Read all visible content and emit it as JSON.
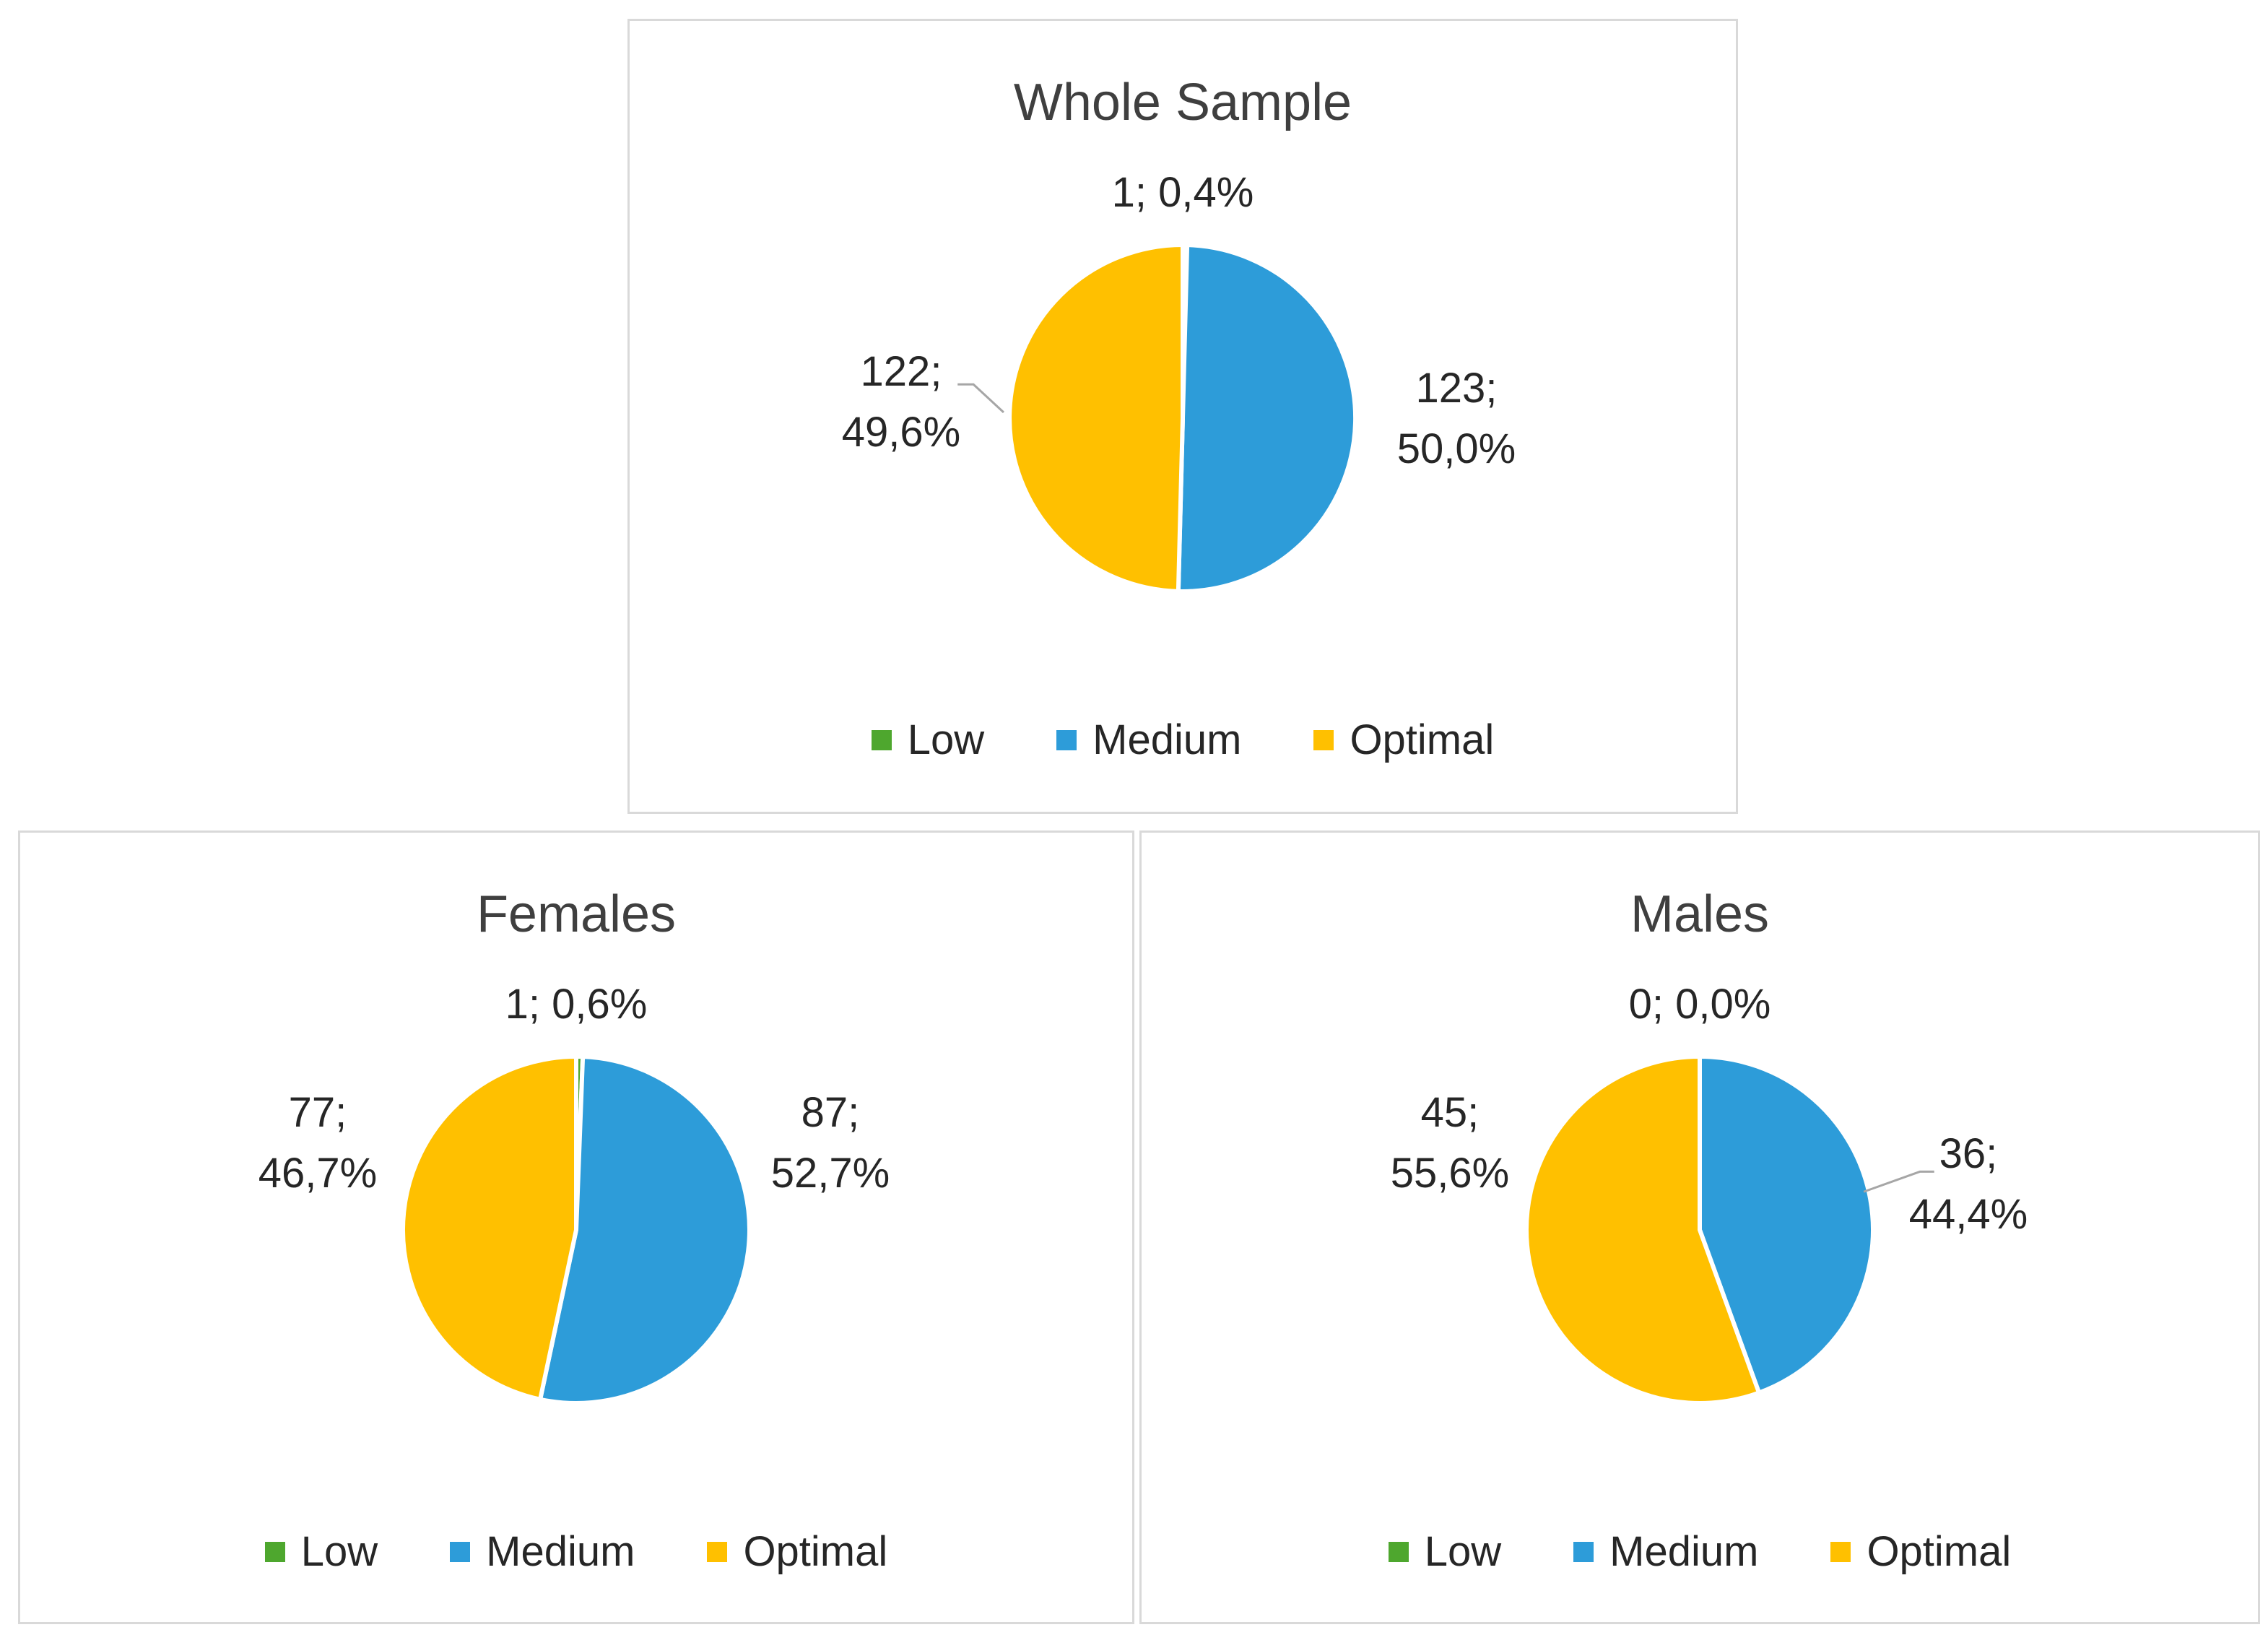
{
  "figure": {
    "background_color": "#ffffff",
    "panel_border_color": "#d9d9d9",
    "leader_line_color": "#a6a6a6",
    "title_text_color": "#3f3f3f",
    "label_text_color": "#262626"
  },
  "chart_data": [
    {
      "type": "pie",
      "title": "Whole Sample",
      "categories": [
        "Low",
        "Medium",
        "Optimal"
      ],
      "values": [
        1,
        123,
        122
      ],
      "percent_labels": [
        "0,4%",
        "50,0%",
        "49,6%"
      ],
      "slice_labels": [
        [
          "1; 0,4%"
        ],
        [
          "123;",
          "50,0%"
        ],
        [
          "122;",
          "49,6%"
        ]
      ],
      "colors": [
        "#4EA72E",
        "#2D9CD9",
        "#FFC000"
      ],
      "legend": [
        "Low",
        "Medium",
        "Optimal"
      ],
      "legend_position": "bottom",
      "direction": "clockwise",
      "start_angle_deg": 0
    },
    {
      "type": "pie",
      "title": "Females",
      "categories": [
        "Low",
        "Medium",
        "Optimal"
      ],
      "values": [
        1,
        87,
        77
      ],
      "percent_labels": [
        "0,6%",
        "52,7%",
        "46,7%"
      ],
      "slice_labels": [
        [
          "1; 0,6%"
        ],
        [
          "87;",
          "52,7%"
        ],
        [
          "77;",
          "46,7%"
        ]
      ],
      "colors": [
        "#4EA72E",
        "#2D9CD9",
        "#FFC000"
      ],
      "legend": [
        "Low",
        "Medium",
        "Optimal"
      ],
      "legend_position": "bottom",
      "direction": "clockwise",
      "start_angle_deg": 0
    },
    {
      "type": "pie",
      "title": "Males",
      "categories": [
        "Low",
        "Medium",
        "Optimal"
      ],
      "values": [
        0,
        36,
        45
      ],
      "percent_labels": [
        "0,0%",
        "44,4%",
        "55,6%"
      ],
      "slice_labels": [
        [
          "0; 0,0%"
        ],
        [
          "36;",
          "44,4%"
        ],
        [
          "45;",
          "55,6%"
        ]
      ],
      "colors": [
        "#4EA72E",
        "#2D9CD9",
        "#FFC000"
      ],
      "legend": [
        "Low",
        "Medium",
        "Optimal"
      ],
      "legend_position": "bottom",
      "direction": "clockwise",
      "start_angle_deg": 0
    }
  ]
}
